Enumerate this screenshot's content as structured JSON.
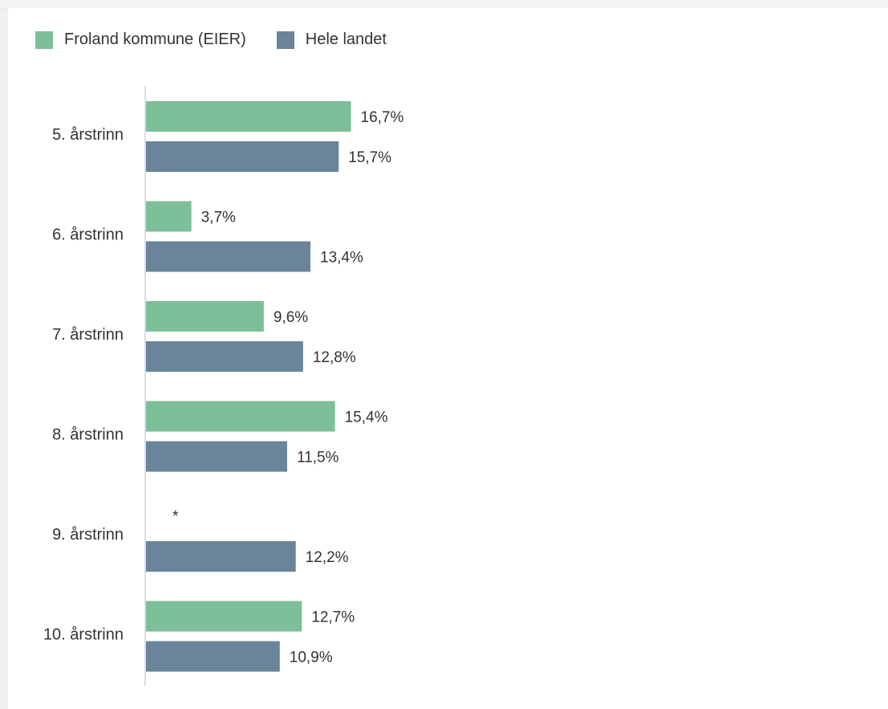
{
  "chart_data": {
    "type": "bar",
    "orientation": "horizontal",
    "categories": [
      "5. årstrinn",
      "6. årstrinn",
      "7. årstrinn",
      "8. årstrinn",
      "9. årstrinn",
      "10. årstrinn"
    ],
    "series": [
      {
        "name": "Froland kommune (EIER)",
        "color": "#7dbf98",
        "values": [
          16.7,
          3.7,
          9.6,
          15.4,
          null,
          12.7
        ],
        "labels": [
          "16,7%",
          "3,7%",
          "9,6%",
          "15,4%",
          "*",
          "12,7%"
        ]
      },
      {
        "name": "Hele landet",
        "color": "#6a8499",
        "values": [
          15.7,
          13.4,
          12.8,
          11.5,
          12.2,
          10.9
        ],
        "labels": [
          "15,7%",
          "13,4%",
          "12,8%",
          "11,5%",
          "12,2%",
          "10,9%"
        ]
      }
    ],
    "xlim": [
      0,
      60
    ],
    "legend_position": "top-left",
    "grid": false,
    "axis_color": "#c9d3e6"
  }
}
